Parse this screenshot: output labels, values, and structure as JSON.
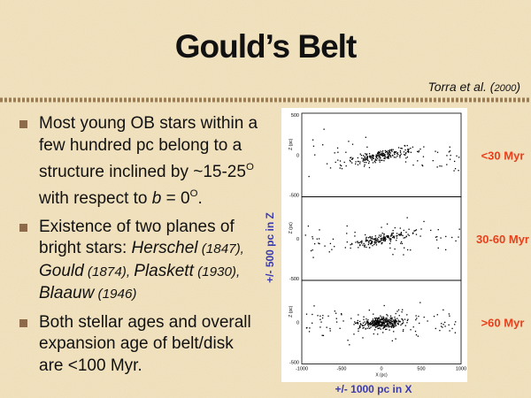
{
  "title": "Gould’s Belt",
  "citation": [
    {
      "text": "Torra et al. (",
      "style": "i"
    },
    {
      "text": "2000",
      "style": "small-i"
    },
    {
      "text": ")",
      "style": "i"
    }
  ],
  "bullets": [
    {
      "lines": [
        [
          {
            "text": "Most young OB stars within a",
            "style": "n"
          }
        ],
        [
          {
            "text": "few hundred pc belong to a",
            "style": "n"
          }
        ],
        [
          {
            "text": "structure inclined by ~15-25",
            "style": "n"
          },
          {
            "text": "O",
            "style": "sup"
          }
        ],
        [
          {
            "text": "with respect to ",
            "style": "n"
          },
          {
            "text": "b",
            "style": "i"
          },
          {
            "text": " = 0",
            "style": "n"
          },
          {
            "text": "O",
            "style": "sup"
          },
          {
            "text": ".",
            "style": "n"
          }
        ]
      ]
    },
    {
      "lines": [
        [
          {
            "text": "Existence of two planes of",
            "style": "n"
          }
        ],
        [
          {
            "text": "bright stars:  ",
            "style": "n"
          },
          {
            "text": "Herschel",
            "style": "i"
          },
          {
            "text": " (1847),",
            "style": "small-i"
          }
        ],
        [
          {
            "text": "Gould",
            "style": "i"
          },
          {
            "text": " (1874),  ",
            "style": "small-i"
          },
          {
            "text": "Plaskett",
            "style": "i"
          },
          {
            "text": " (1930),",
            "style": "small-i"
          }
        ],
        [
          {
            "text": "Blaauw",
            "style": "i"
          },
          {
            "text": " (1946)",
            "style": "small-i"
          }
        ]
      ]
    },
    {
      "lines": [
        [
          {
            "text": "Both stellar ages and overall",
            "style": "n"
          }
        ],
        [
          {
            "text": "expansion age of belt/disk",
            "style": "n"
          }
        ],
        [
          {
            "text": "are <100 Myr.",
            "style": "n"
          }
        ]
      ]
    }
  ],
  "figure": {
    "panels": [
      {
        "y_tick_labels": [
          "500",
          "0",
          "-500"
        ],
        "y_label": "Z (pc)",
        "age": "<30 Myr"
      },
      {
        "y_tick_labels": [
          "0",
          "-500"
        ],
        "y_label": "Z (pc)",
        "age": "30-60 Myr"
      },
      {
        "y_tick_labels": [
          "0",
          "-500"
        ],
        "y_label": "Z (pc)",
        "age": ">60 Myr"
      }
    ],
    "x_tick_labels": [
      "-1000",
      "-500",
      "0",
      "500",
      "1000"
    ],
    "x_label": "X (pc)",
    "z_range_label": "+/- 500 pc in Z",
    "x_range_label": "+/- 1000 pc in X"
  }
}
